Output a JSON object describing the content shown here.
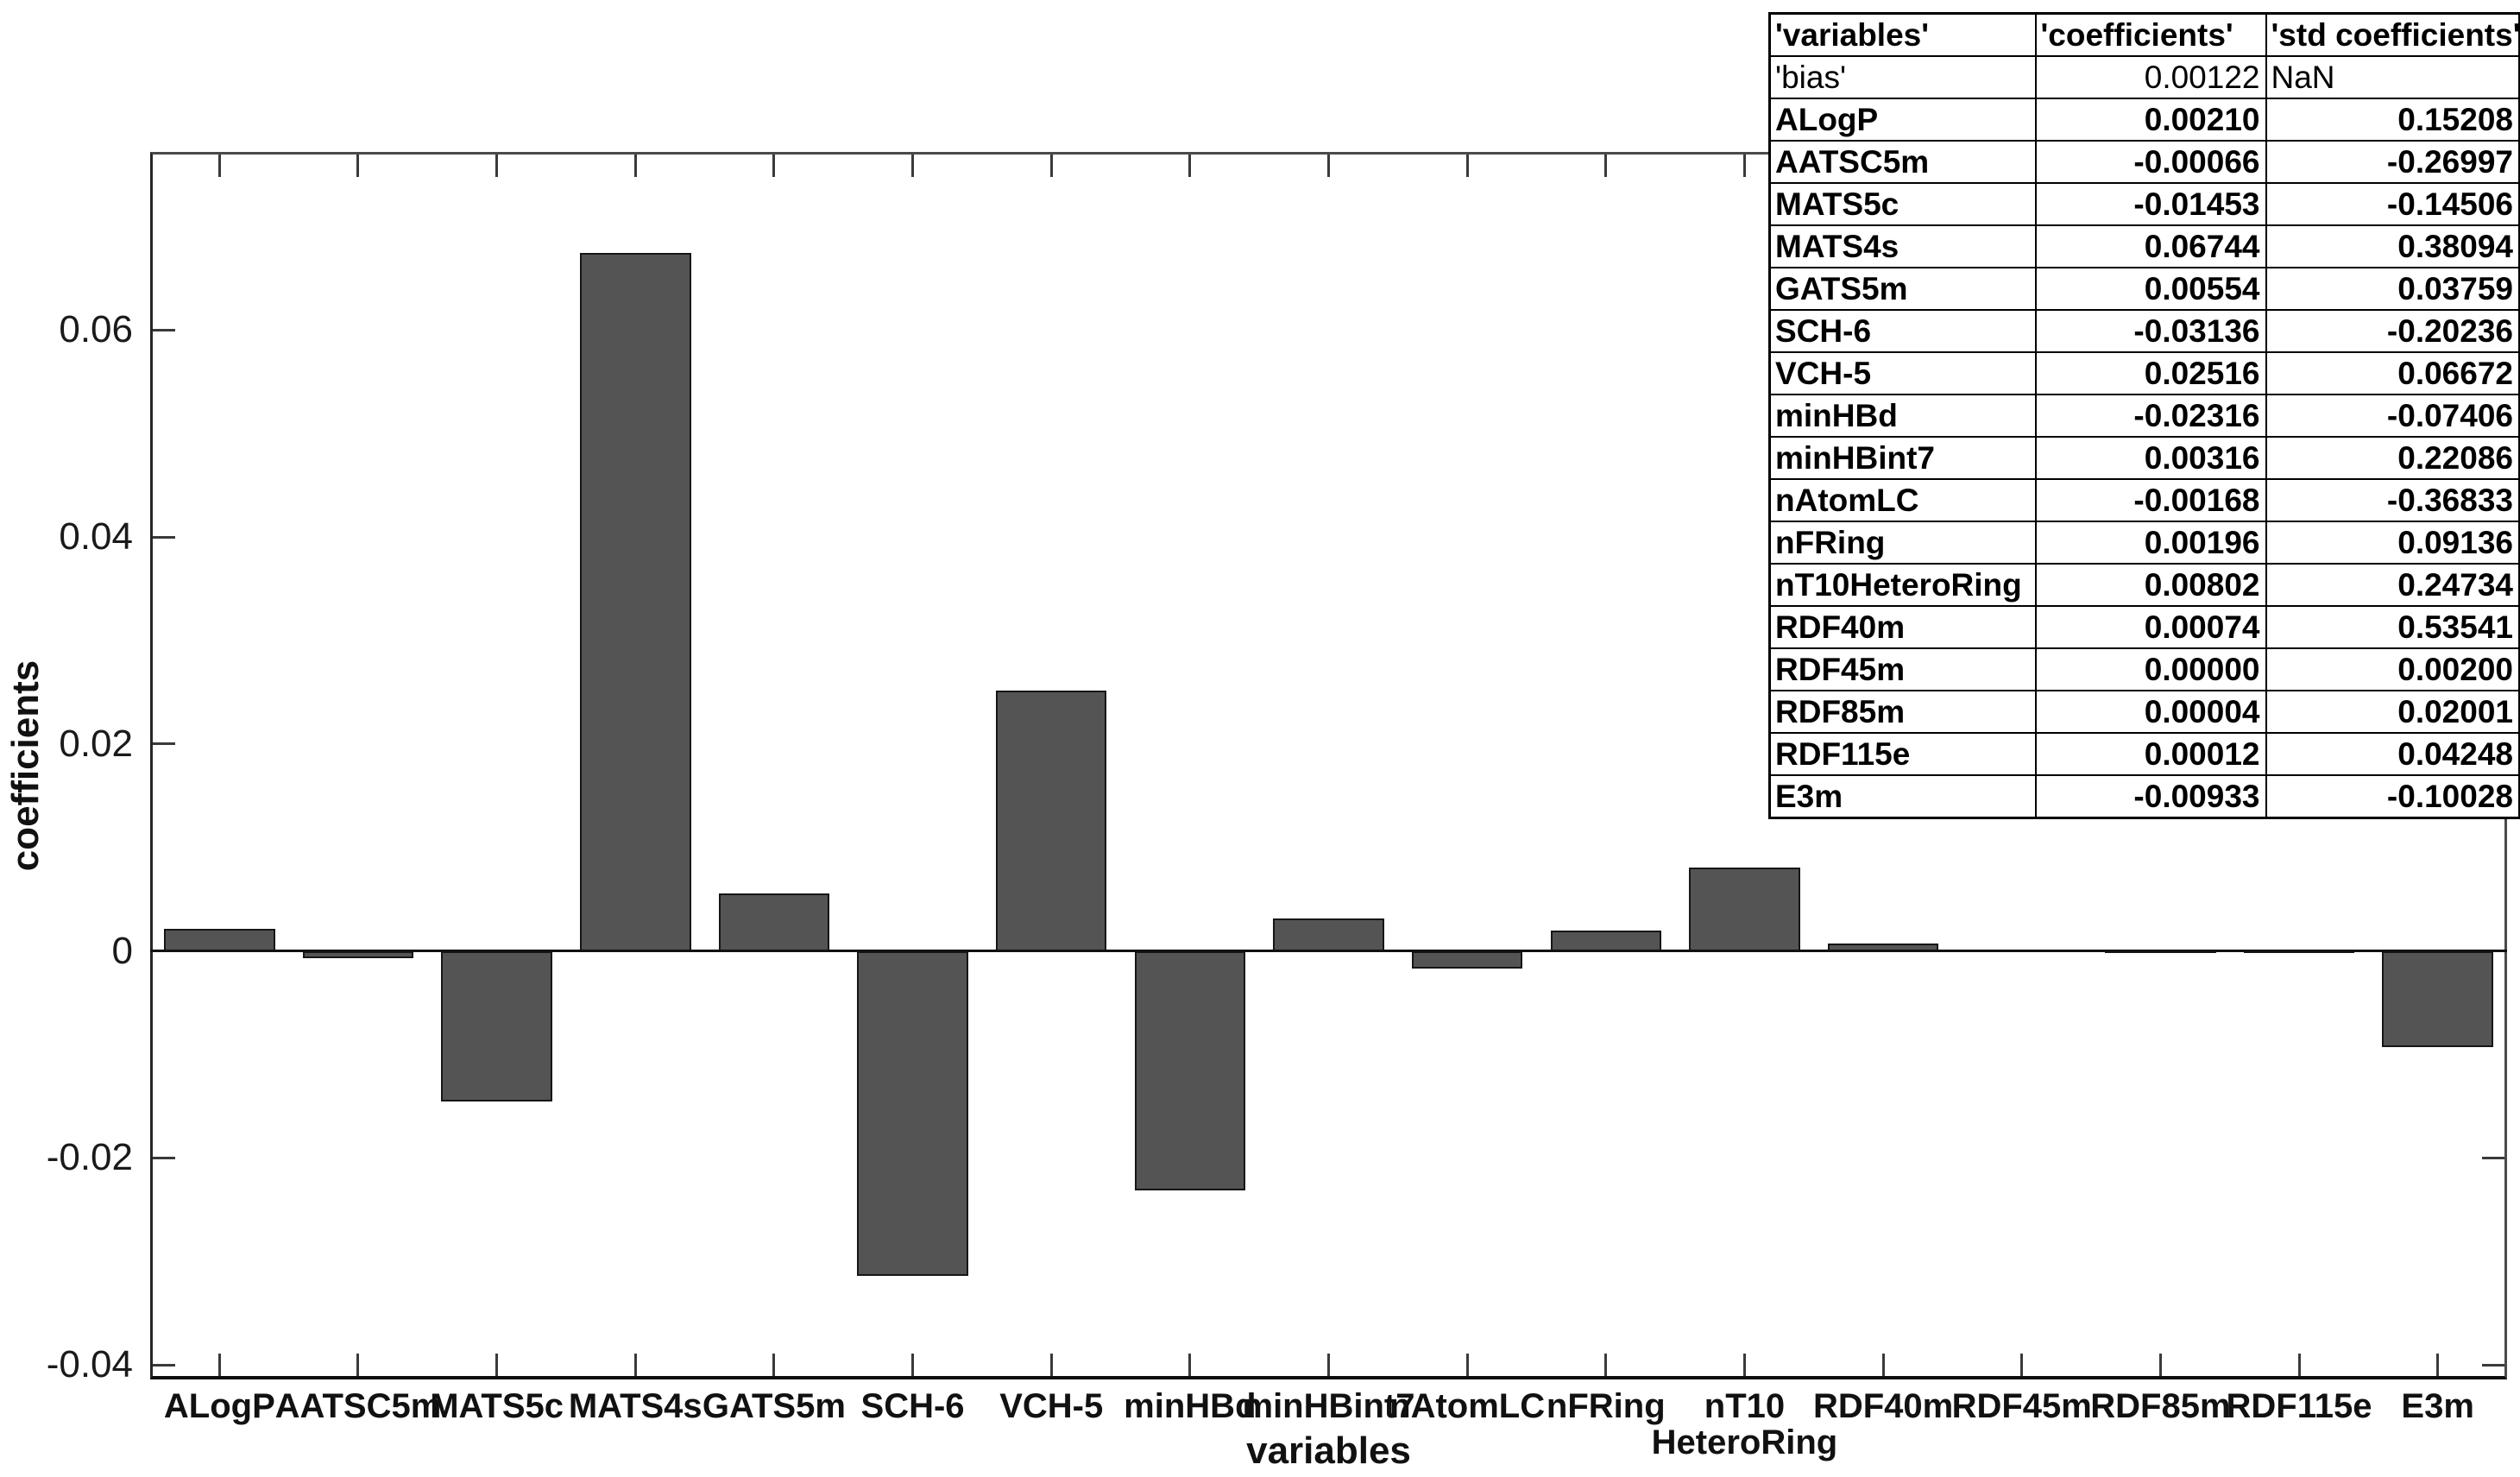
{
  "figure": {
    "background": "#ffffff"
  },
  "chart_data": {
    "type": "bar",
    "title": "",
    "xlabel": "variables",
    "ylabel": "coefficients",
    "categories": [
      "ALogP",
      "AATSC5m",
      "MATS5c",
      "MATS4s",
      "GATS5m",
      "SCH-6",
      "VCH-5",
      "minHBd",
      "minHBint7",
      "nAtomLC",
      "nFRing",
      "nT10\nHeteroRing",
      "RDF40m",
      "RDF45m",
      "RDF85m",
      "RDF115e",
      "E3m"
    ],
    "values": [
      0.0021,
      -0.00066,
      -0.01453,
      0.06744,
      0.00554,
      -0.03136,
      0.02516,
      -0.02316,
      0.00316,
      -0.00168,
      0.00196,
      0.00802,
      0.00074,
      0.0,
      4e-05,
      0.00012,
      -0.00933
    ],
    "ylim": [
      -0.0414,
      0.0772
    ],
    "yticks": [
      0.06,
      0.04,
      0.02,
      0,
      -0.02,
      -0.04
    ],
    "ytick_labels": [
      "0.06",
      "0.04",
      "0.02",
      "0",
      "-0.02",
      "-0.04"
    ],
    "bar_color": "#545454",
    "bar_edge_color": "#161616",
    "grid": false,
    "legend_position": "none",
    "bar_width_fraction": 0.8
  },
  "table": {
    "headers": [
      "'variables'",
      "'coefficients'",
      "'std coefficients'"
    ],
    "rows": [
      {
        "variable": "'bias'",
        "coefficient": "0.00122",
        "std_coefficient": "NaN",
        "style": "regular"
      },
      {
        "variable": "ALogP",
        "coefficient": "0.00210",
        "std_coefficient": "0.15208",
        "style": "bold"
      },
      {
        "variable": "AATSC5m",
        "coefficient": "-0.00066",
        "std_coefficient": "-0.26997",
        "style": "bold"
      },
      {
        "variable": "MATS5c",
        "coefficient": "-0.01453",
        "std_coefficient": "-0.14506",
        "style": "bold"
      },
      {
        "variable": "MATS4s",
        "coefficient": "0.06744",
        "std_coefficient": "0.38094",
        "style": "bold"
      },
      {
        "variable": "GATS5m",
        "coefficient": "0.00554",
        "std_coefficient": "0.03759",
        "style": "bold"
      },
      {
        "variable": "SCH-6",
        "coefficient": "-0.03136",
        "std_coefficient": "-0.20236",
        "style": "bold"
      },
      {
        "variable": "VCH-5",
        "coefficient": "0.02516",
        "std_coefficient": "0.06672",
        "style": "bold"
      },
      {
        "variable": "minHBd",
        "coefficient": "-0.02316",
        "std_coefficient": "-0.07406",
        "style": "bold"
      },
      {
        "variable": "minHBint7",
        "coefficient": "0.00316",
        "std_coefficient": "0.22086",
        "style": "bold"
      },
      {
        "variable": "nAtomLC",
        "coefficient": "-0.00168",
        "std_coefficient": "-0.36833",
        "style": "bold"
      },
      {
        "variable": "nFRing",
        "coefficient": "0.00196",
        "std_coefficient": "0.09136",
        "style": "bold"
      },
      {
        "variable": "nT10HeteroRing",
        "coefficient": "0.00802",
        "std_coefficient": "0.24734",
        "style": "bold"
      },
      {
        "variable": "RDF40m",
        "coefficient": "0.00074",
        "std_coefficient": "0.53541",
        "style": "bold"
      },
      {
        "variable": "RDF45m",
        "coefficient": "0.00000",
        "std_coefficient": "0.00200",
        "style": "bold"
      },
      {
        "variable": "RDF85m",
        "coefficient": "0.00004",
        "std_coefficient": "0.02001",
        "style": "bold"
      },
      {
        "variable": "RDF115e",
        "coefficient": "0.00012",
        "std_coefficient": "0.04248",
        "style": "bold"
      },
      {
        "variable": "E3m",
        "coefficient": "-0.00933",
        "std_coefficient": "-0.10028",
        "style": "bold"
      }
    ]
  }
}
